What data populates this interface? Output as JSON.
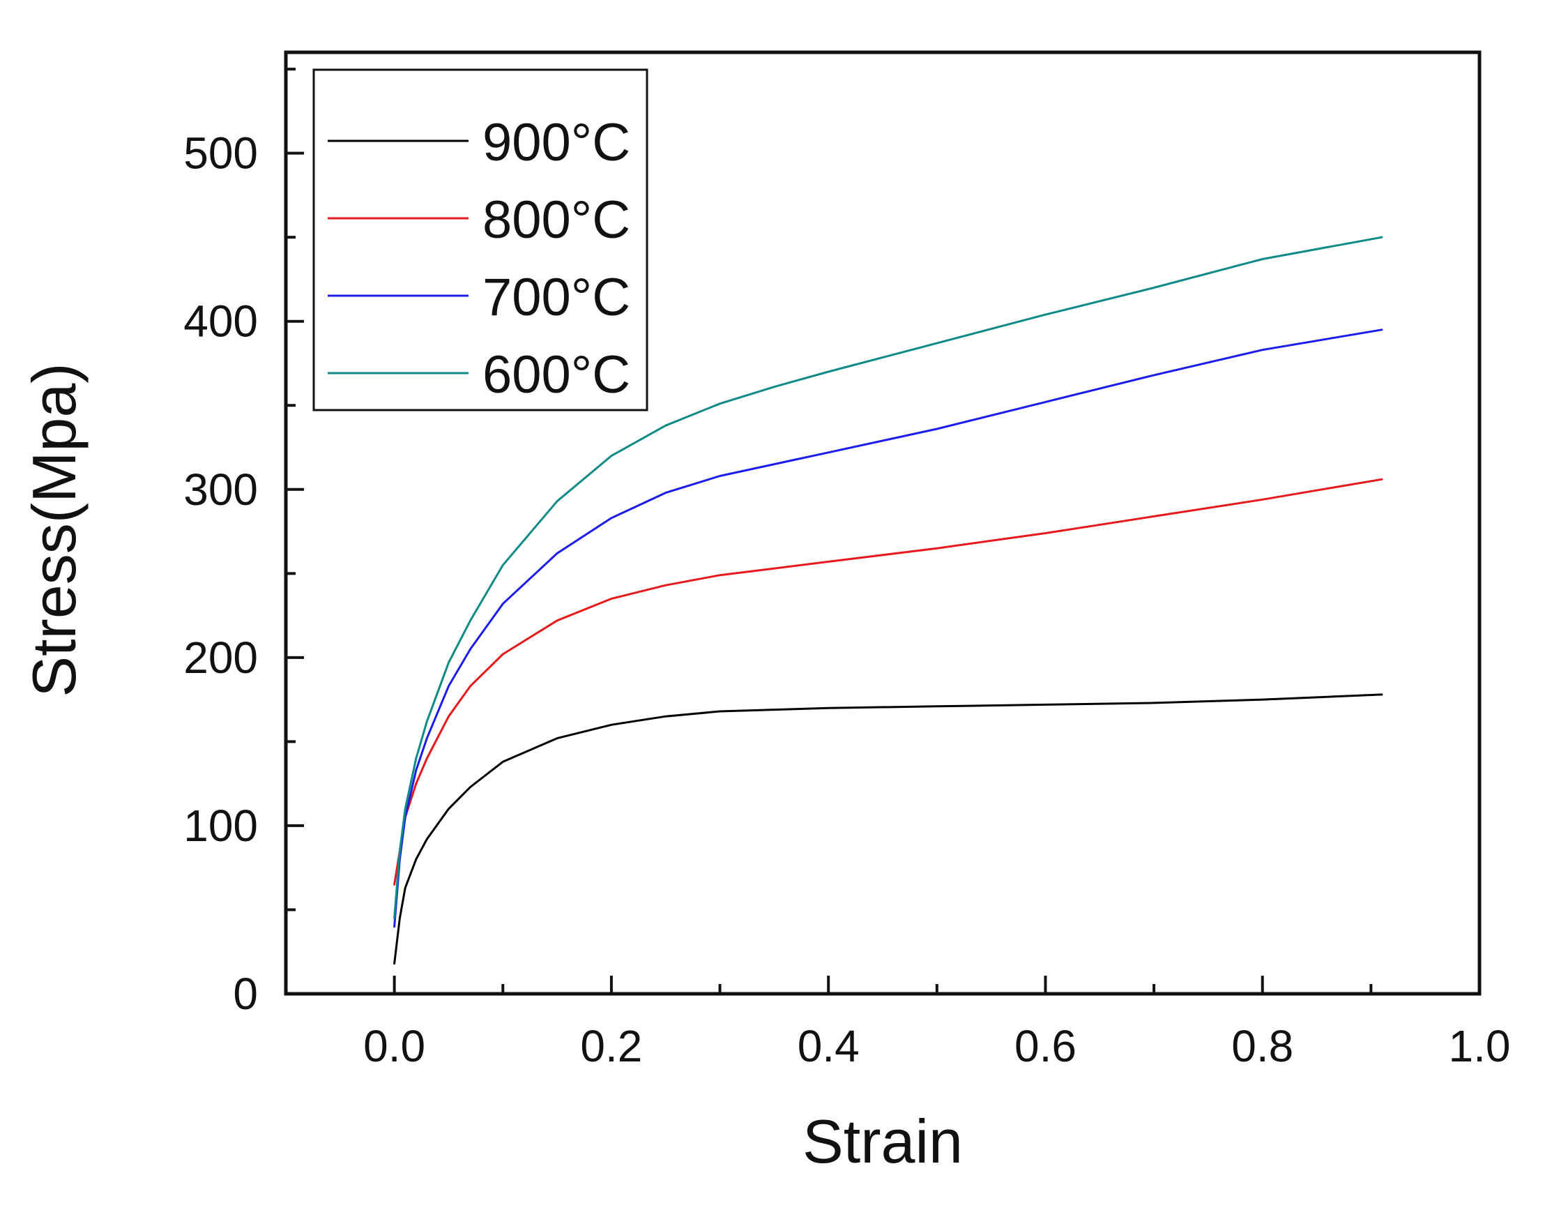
{
  "chart_data": {
    "type": "line",
    "title": "",
    "xlabel": "Strain",
    "ylabel": "Stress(Mpa)",
    "xlim": [
      -0.1,
      1.0
    ],
    "ylim": [
      0,
      560
    ],
    "grid": false,
    "legend_position": "top-left",
    "x_ticks": [
      "0.0",
      "0.2",
      "0.4",
      "0.6",
      "0.8",
      "1.0"
    ],
    "y_ticks": [
      "0",
      "100",
      "200",
      "300",
      "400",
      "500"
    ],
    "series": [
      {
        "name": "900°C",
        "color": "#000000",
        "x": [
          0.0,
          0.005,
          0.01,
          0.02,
          0.03,
          0.05,
          0.07,
          0.1,
          0.15,
          0.2,
          0.25,
          0.3,
          0.35,
          0.4,
          0.5,
          0.6,
          0.7,
          0.8,
          0.91
        ],
        "y": [
          18,
          45,
          63,
          80,
          92,
          110,
          123,
          138,
          152,
          160,
          165,
          168,
          169,
          170,
          171,
          172,
          173,
          175,
          178
        ]
      },
      {
        "name": "800°C",
        "color": "#e8191c",
        "x": [
          0.0,
          0.005,
          0.01,
          0.02,
          0.03,
          0.05,
          0.07,
          0.1,
          0.15,
          0.2,
          0.25,
          0.3,
          0.35,
          0.4,
          0.5,
          0.6,
          0.7,
          0.8,
          0.91
        ],
        "y": [
          65,
          85,
          105,
          125,
          140,
          165,
          183,
          202,
          222,
          235,
          243,
          249,
          253,
          257,
          265,
          274,
          284,
          294,
          306
        ]
      },
      {
        "name": "700°C",
        "color": "#1c1cf0",
        "x": [
          0.0,
          0.005,
          0.01,
          0.02,
          0.03,
          0.05,
          0.07,
          0.1,
          0.15,
          0.2,
          0.25,
          0.3,
          0.35,
          0.4,
          0.5,
          0.6,
          0.7,
          0.8,
          0.91
        ],
        "y": [
          40,
          80,
          105,
          133,
          152,
          183,
          205,
          232,
          262,
          283,
          298,
          308,
          315,
          322,
          336,
          352,
          368,
          383,
          395
        ]
      },
      {
        "name": "600°C",
        "color": "#0f8a86",
        "x": [
          0.0,
          0.005,
          0.01,
          0.02,
          0.03,
          0.05,
          0.07,
          0.1,
          0.15,
          0.2,
          0.25,
          0.3,
          0.35,
          0.4,
          0.5,
          0.6,
          0.7,
          0.8,
          0.91
        ],
        "y": [
          45,
          85,
          110,
          140,
          162,
          197,
          222,
          255,
          293,
          320,
          338,
          351,
          361,
          370,
          387,
          404,
          420,
          437,
          450
        ]
      }
    ]
  }
}
